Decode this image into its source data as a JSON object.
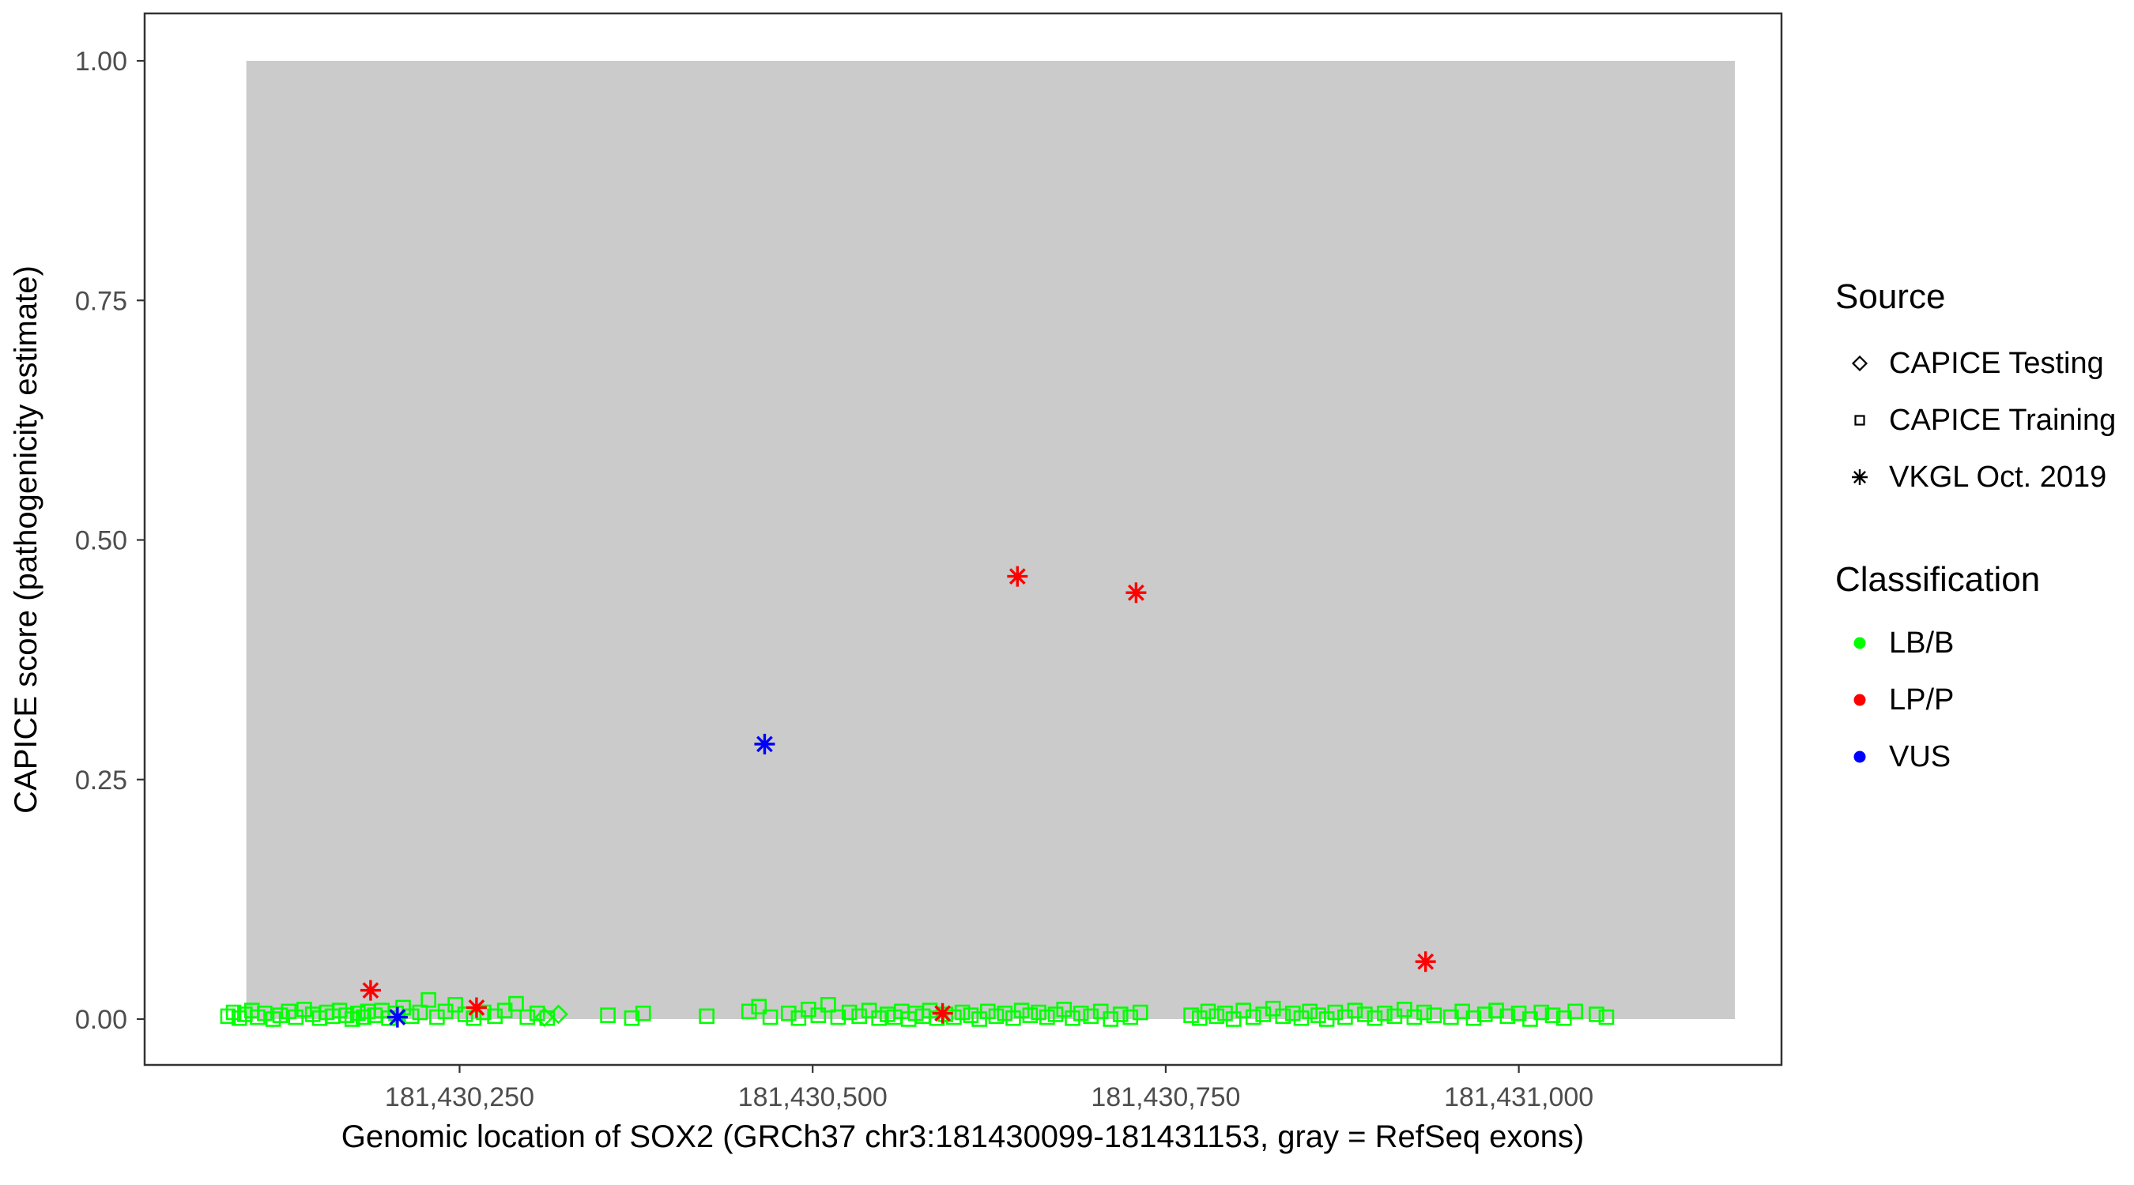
{
  "page": {
    "background": "#FFFFFF"
  },
  "legend": {
    "source": {
      "title": "Source",
      "items": [
        {
          "label": "CAPICE Testing",
          "shape": "diamond"
        },
        {
          "label": "CAPICE Training",
          "shape": "square"
        },
        {
          "label": "VKGL Oct. 2019",
          "shape": "asterisk"
        }
      ]
    },
    "classification": {
      "title": "Classification",
      "items": [
        {
          "label": "LB/B",
          "color": "#00FF00"
        },
        {
          "label": "LP/P",
          "color": "#FF0000"
        },
        {
          "label": "VUS",
          "color": "#0000FF"
        }
      ]
    }
  },
  "chart_data": {
    "type": "scatter",
    "title": "",
    "xlabel": "Genomic location of SOX2 (GRCh37 chr3:181430099-181431153, gray = RefSeq exons)",
    "ylabel": "CAPICE score (pathogenicity estimate)",
    "x_domain": [
      181430027,
      181431186
    ],
    "y_domain": [
      0,
      1
    ],
    "grid": false,
    "legend_position": "right",
    "x_ticks": [
      {
        "value": 181430250,
        "label": "181,430,250"
      },
      {
        "value": 181430500,
        "label": "181,430,500"
      },
      {
        "value": 181430750,
        "label": "181,430,750"
      },
      {
        "value": 181431000,
        "label": "181,431,000"
      }
    ],
    "y_ticks": [
      {
        "value": 0.0,
        "label": "0.00"
      },
      {
        "value": 0.25,
        "label": "0.25"
      },
      {
        "value": 0.5,
        "label": "0.50"
      },
      {
        "value": 0.75,
        "label": "0.75"
      },
      {
        "value": 1.0,
        "label": "1.00"
      }
    ],
    "exon_region": {
      "start": 181430099,
      "end": 181431153,
      "color": "#CBCBCB",
      "note": "gray = RefSeq exons"
    },
    "series": [
      {
        "name": "CAPICE Training / LB/B",
        "source": "CAPICE Training",
        "classification": "LB/B",
        "shape": "square",
        "color": "#00FF00",
        "points": [
          [
            181430086,
            0.003
          ],
          [
            181430090,
            0.007
          ],
          [
            181430094,
            0.001
          ],
          [
            181430098,
            0.005
          ],
          [
            181430103,
            0.009
          ],
          [
            181430107,
            0.002
          ],
          [
            181430112,
            0.006
          ],
          [
            181430118,
            0.0
          ],
          [
            181430123,
            0.004
          ],
          [
            181430129,
            0.008
          ],
          [
            181430134,
            0.002
          ],
          [
            181430140,
            0.01
          ],
          [
            181430146,
            0.005
          ],
          [
            181430151,
            0.001
          ],
          [
            181430156,
            0.007
          ],
          [
            181430160,
            0.003
          ],
          [
            181430165,
            0.009
          ],
          [
            181430170,
            0.004
          ],
          [
            181430174,
            0.0
          ],
          [
            181430178,
            0.006
          ],
          [
            181430182,
            0.002
          ],
          [
            181430185,
            0.008
          ],
          [
            181430190,
            0.004
          ],
          [
            181430195,
            0.009
          ],
          [
            181430200,
            0.001
          ],
          [
            181430205,
            0.006
          ],
          [
            181430210,
            0.012
          ],
          [
            181430216,
            0.003
          ],
          [
            181430222,
            0.007
          ],
          [
            181430228,
            0.02
          ],
          [
            181430234,
            0.002
          ],
          [
            181430240,
            0.008
          ],
          [
            181430247,
            0.015
          ],
          [
            181430254,
            0.005
          ],
          [
            181430260,
            0.001
          ],
          [
            181430267,
            0.007
          ],
          [
            181430275,
            0.003
          ],
          [
            181430282,
            0.009
          ],
          [
            181430290,
            0.016
          ],
          [
            181430298,
            0.002
          ],
          [
            181430305,
            0.006
          ],
          [
            181430312,
            0.001
          ],
          [
            181430355,
            0.004
          ],
          [
            181430372,
            0.001
          ],
          [
            181430380,
            0.006
          ],
          [
            181430425,
            0.003
          ],
          [
            181430455,
            0.008
          ],
          [
            181430462,
            0.013
          ],
          [
            181430470,
            0.002
          ],
          [
            181430483,
            0.006
          ],
          [
            181430490,
            0.001
          ],
          [
            181430497,
            0.01
          ],
          [
            181430504,
            0.004
          ],
          [
            181430511,
            0.015
          ],
          [
            181430518,
            0.002
          ],
          [
            181430526,
            0.007
          ],
          [
            181430533,
            0.003
          ],
          [
            181430540,
            0.009
          ],
          [
            181430547,
            0.001
          ],
          [
            181430553,
            0.005
          ],
          [
            181430558,
            0.002
          ],
          [
            181430563,
            0.008
          ],
          [
            181430568,
            0.0
          ],
          [
            181430573,
            0.006
          ],
          [
            181430578,
            0.003
          ],
          [
            181430583,
            0.009
          ],
          [
            181430588,
            0.001
          ],
          [
            181430594,
            0.005
          ],
          [
            181430600,
            0.002
          ],
          [
            181430606,
            0.007
          ],
          [
            181430612,
            0.004
          ],
          [
            181430618,
            0.0
          ],
          [
            181430624,
            0.008
          ],
          [
            181430630,
            0.003
          ],
          [
            181430636,
            0.006
          ],
          [
            181430642,
            0.001
          ],
          [
            181430648,
            0.009
          ],
          [
            181430654,
            0.004
          ],
          [
            181430660,
            0.007
          ],
          [
            181430666,
            0.002
          ],
          [
            181430672,
            0.005
          ],
          [
            181430678,
            0.01
          ],
          [
            181430684,
            0.001
          ],
          [
            181430690,
            0.006
          ],
          [
            181430697,
            0.003
          ],
          [
            181430704,
            0.008
          ],
          [
            181430711,
            0.0
          ],
          [
            181430718,
            0.005
          ],
          [
            181430725,
            0.002
          ],
          [
            181430732,
            0.007
          ],
          [
            181430768,
            0.004
          ],
          [
            181430774,
            0.001
          ],
          [
            181430780,
            0.008
          ],
          [
            181430786,
            0.003
          ],
          [
            181430792,
            0.006
          ],
          [
            181430798,
            0.0
          ],
          [
            181430805,
            0.009
          ],
          [
            181430812,
            0.002
          ],
          [
            181430819,
            0.005
          ],
          [
            181430826,
            0.011
          ],
          [
            181430833,
            0.003
          ],
          [
            181430840,
            0.006
          ],
          [
            181430846,
            0.001
          ],
          [
            181430852,
            0.008
          ],
          [
            181430858,
            0.004
          ],
          [
            181430864,
            0.0
          ],
          [
            181430870,
            0.007
          ],
          [
            181430877,
            0.002
          ],
          [
            181430884,
            0.009
          ],
          [
            181430891,
            0.005
          ],
          [
            181430898,
            0.001
          ],
          [
            181430905,
            0.006
          ],
          [
            181430912,
            0.003
          ],
          [
            181430919,
            0.01
          ],
          [
            181430926,
            0.002
          ],
          [
            181430933,
            0.007
          ],
          [
            181430940,
            0.004
          ],
          [
            181430952,
            0.002
          ],
          [
            181430960,
            0.008
          ],
          [
            181430968,
            0.001
          ],
          [
            181430976,
            0.005
          ],
          [
            181430984,
            0.009
          ],
          [
            181430992,
            0.003
          ],
          [
            181431000,
            0.006
          ],
          [
            181431008,
            0.0
          ],
          [
            181431016,
            0.007
          ],
          [
            181431024,
            0.004
          ],
          [
            181431032,
            0.001
          ],
          [
            181431040,
            0.008
          ],
          [
            181431055,
            0.005
          ],
          [
            181431062,
            0.002
          ]
        ]
      },
      {
        "name": "CAPICE Testing / LB/B",
        "source": "CAPICE Testing",
        "classification": "LB/B",
        "shape": "diamond",
        "color": "#00FF00",
        "points": [
          [
            181430310,
            0.002
          ],
          [
            181430320,
            0.005
          ]
        ]
      },
      {
        "name": "VKGL Oct. 2019 / LP/P",
        "source": "VKGL Oct. 2019",
        "classification": "LP/P",
        "shape": "asterisk",
        "color": "#FF0000",
        "points": [
          [
            181430187,
            0.03
          ],
          [
            181430262,
            0.012
          ],
          [
            181430592,
            0.006
          ],
          [
            181430645,
            0.462
          ],
          [
            181430729,
            0.445
          ],
          [
            181430934,
            0.06
          ]
        ]
      },
      {
        "name": "VKGL Oct. 2019 / VUS",
        "source": "VKGL Oct. 2019",
        "classification": "VUS",
        "shape": "asterisk",
        "color": "#0000FF",
        "points": [
          [
            181430206,
            0.002
          ],
          [
            181430466,
            0.287
          ]
        ]
      }
    ]
  }
}
